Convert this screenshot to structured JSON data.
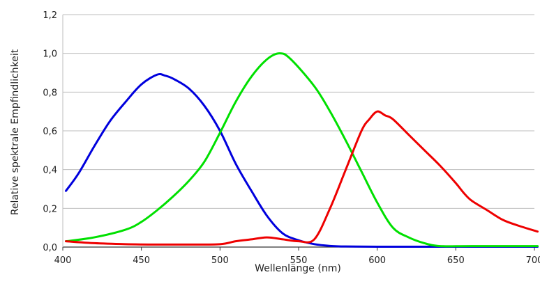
{
  "chart_data": {
    "type": "line",
    "title": "",
    "xlabel": "Wellenlänge (nm)",
    "ylabel": "Relative spektrale Empfindlichkeit",
    "xlim": [
      400,
      700
    ],
    "ylim": [
      0,
      1.2
    ],
    "x_ticks": [
      400,
      450,
      500,
      550,
      600,
      650,
      700
    ],
    "x_tick_labels": [
      "400",
      "450",
      "500",
      "550",
      "600",
      "650",
      "700"
    ],
    "y_ticks": [
      0,
      0.2,
      0.4,
      0.6,
      0.8,
      1.0,
      1.2
    ],
    "y_tick_labels": [
      "0,0",
      "0,2",
      "0,4",
      "0,6",
      "0,8",
      "1,0",
      "1,2"
    ],
    "grid": "horizontal",
    "legend": "none",
    "series": [
      {
        "color": "#0000dd",
        "x": [
          402,
          410,
          420,
          430,
          440,
          450,
          460,
          465,
          470,
          480,
          490,
          500,
          510,
          520,
          530,
          540,
          550,
          560,
          570,
          580,
          600,
          620,
          650,
          680,
          702
        ],
        "y": [
          0.29,
          0.38,
          0.52,
          0.65,
          0.75,
          0.84,
          0.89,
          0.885,
          0.87,
          0.82,
          0.73,
          0.6,
          0.43,
          0.29,
          0.16,
          0.07,
          0.035,
          0.015,
          0.006,
          0.003,
          0.002,
          0.002,
          0.002,
          0.002,
          0.002
        ]
      },
      {
        "color": "#00e000",
        "x": [
          402,
          420,
          440,
          450,
          460,
          470,
          480,
          490,
          500,
          510,
          520,
          530,
          538,
          545,
          560,
          570,
          580,
          590,
          600,
          610,
          620,
          630,
          640,
          660,
          702
        ],
        "y": [
          0.03,
          0.05,
          0.09,
          0.13,
          0.19,
          0.26,
          0.34,
          0.44,
          0.59,
          0.75,
          0.88,
          0.97,
          1.0,
          0.97,
          0.83,
          0.7,
          0.55,
          0.39,
          0.23,
          0.1,
          0.05,
          0.02,
          0.005,
          0.005,
          0.005
        ]
      },
      {
        "color": "#ee0000",
        "x": [
          402,
          420,
          440,
          460,
          480,
          500,
          510,
          520,
          530,
          540,
          550,
          560,
          570,
          580,
          590,
          595,
          600,
          605,
          610,
          620,
          630,
          640,
          650,
          655,
          660,
          670,
          680,
          690,
          702
        ],
        "y": [
          0.03,
          0.02,
          0.015,
          0.013,
          0.013,
          0.015,
          0.03,
          0.04,
          0.05,
          0.04,
          0.03,
          0.04,
          0.2,
          0.4,
          0.6,
          0.66,
          0.7,
          0.68,
          0.66,
          0.58,
          0.5,
          0.42,
          0.33,
          0.28,
          0.24,
          0.19,
          0.14,
          0.11,
          0.08
        ]
      }
    ]
  }
}
